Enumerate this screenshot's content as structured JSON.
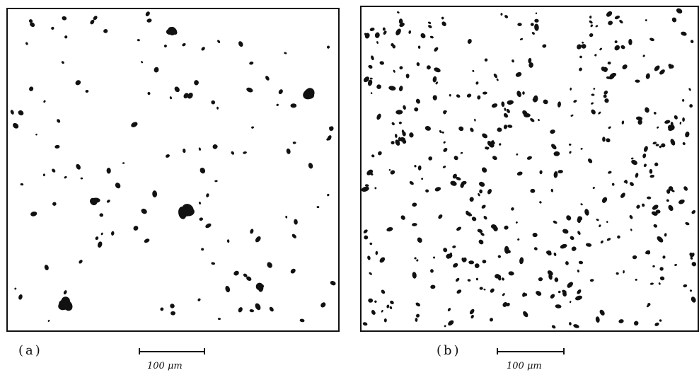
{
  "figure": {
    "panels": [
      {
        "id": "a",
        "caption": "(a)",
        "scale_bar_label": "100 μm",
        "particle_density": "sparse"
      },
      {
        "id": "b",
        "caption": "(b)",
        "scale_bar_label": "100 μm",
        "particle_density": "dense"
      }
    ],
    "colors": {
      "background": "#ffffff",
      "particle": "#111111"
    }
  }
}
